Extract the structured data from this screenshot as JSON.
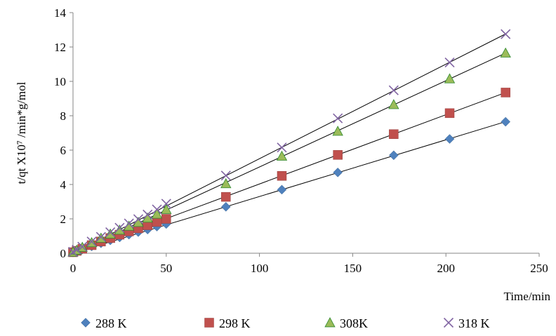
{
  "chart_data": {
    "type": "scatter",
    "title": "",
    "xlabel": "Time/min",
    "ylabel": "t/qt X10⁷ /min*g/mol",
    "xlim": [
      0,
      250
    ],
    "ylim": [
      0,
      14
    ],
    "xticks": [
      0,
      50,
      100,
      150,
      200,
      250
    ],
    "yticks": [
      0,
      2,
      4,
      6,
      8,
      10,
      12,
      14
    ],
    "grid": false,
    "legend_position": "bottom",
    "series": [
      {
        "name": "288 K",
        "marker": "diamond",
        "color": "#4F81BD",
        "x": [
          0,
          2,
          5,
          10,
          15,
          20,
          25,
          30,
          35,
          40,
          45,
          50,
          82,
          112,
          142,
          172,
          202,
          232
        ],
        "y": [
          0.05,
          0.12,
          0.22,
          0.4,
          0.58,
          0.75,
          0.92,
          1.08,
          1.23,
          1.38,
          1.55,
          1.7,
          2.7,
          3.7,
          4.7,
          5.7,
          6.65,
          7.65
        ],
        "fit_line": [
          0,
          0.033
        ]
      },
      {
        "name": "298 K",
        "marker": "square",
        "color": "#C0504D",
        "x": [
          0,
          2,
          5,
          10,
          15,
          20,
          25,
          30,
          35,
          40,
          45,
          50,
          82,
          112,
          142,
          172,
          202,
          232
        ],
        "y": [
          0.06,
          0.14,
          0.26,
          0.47,
          0.68,
          0.88,
          1.08,
          1.27,
          1.45,
          1.63,
          1.82,
          2.0,
          3.28,
          4.5,
          5.72,
          6.93,
          8.15,
          9.35
        ],
        "fit_line": [
          0,
          0.0403
        ]
      },
      {
        "name": "308K",
        "marker": "triangle",
        "color": "#9BBB59",
        "x": [
          0,
          2,
          5,
          10,
          15,
          20,
          25,
          30,
          35,
          40,
          45,
          50,
          82,
          112,
          142,
          172,
          202,
          232
        ],
        "y": [
          0.07,
          0.18,
          0.35,
          0.62,
          0.88,
          1.12,
          1.35,
          1.58,
          1.8,
          2.05,
          2.28,
          2.55,
          4.05,
          5.65,
          7.1,
          8.65,
          10.15,
          11.65
        ],
        "fit_line": [
          0,
          0.0502
        ]
      },
      {
        "name": "318 K",
        "marker": "x",
        "color": "#8064A2",
        "x": [
          0,
          2,
          5,
          10,
          15,
          20,
          25,
          30,
          35,
          40,
          45,
          50,
          82,
          112,
          142,
          172,
          202,
          232
        ],
        "y": [
          0.08,
          0.2,
          0.38,
          0.68,
          0.95,
          1.22,
          1.48,
          1.73,
          1.98,
          2.25,
          2.55,
          2.88,
          4.52,
          6.15,
          7.85,
          9.48,
          11.1,
          12.75
        ],
        "fit_line": [
          0,
          0.055
        ]
      }
    ]
  }
}
